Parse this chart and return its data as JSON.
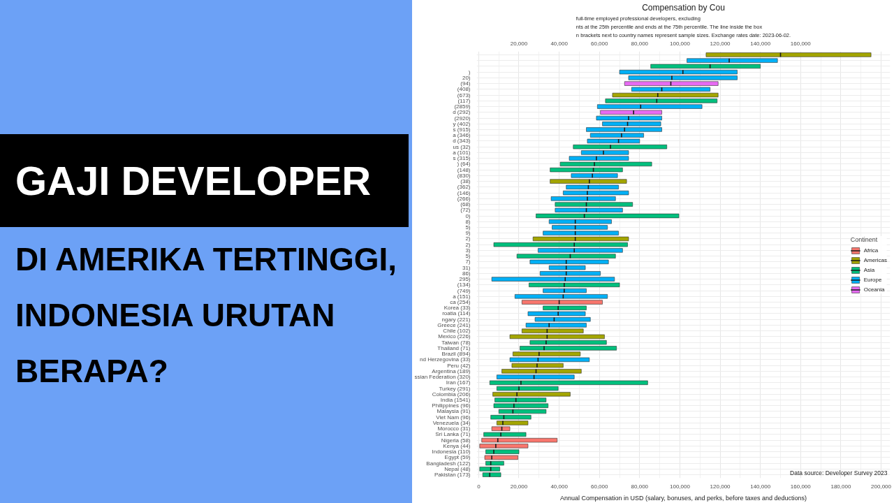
{
  "chart_data": {
    "type": "box",
    "orientation": "horizontal",
    "title": "Compensation by Cou",
    "subtitle": "full-time employed professional developers, excluding\nnts at the 25th percentile and ends at the 75th percentile. The line inside the box\nn brackets next to country names represent sample sizes. Exchange rates date: 2023-06-02.",
    "xlabel": "Annual Compensation in USD (salary, bonuses, and perks, before taxes and deductions)",
    "legend_title": "Continent",
    "legend": "right",
    "grid": true,
    "annotations": [
      "GAJI DEVELOPER",
      "DI AMERIKA TERTINGGI,",
      "INDONESIA URUTAN",
      "BERAPA?",
      "Data source: Developer Survey 2023"
    ],
    "xlim": [
      -1000,
      204500
    ],
    "xticks": [
      0,
      {
        "value": 20000,
        "label": "20,000"
      },
      {
        "value": 40000,
        "label": "40,000"
      },
      {
        "value": 60000,
        "label": "60,000"
      },
      {
        "value": 80000,
        "label": "80,000"
      },
      {
        "value": 100000,
        "label": "100,000"
      },
      {
        "value": 120000,
        "label": "120,000"
      },
      {
        "value": 140000,
        "label": "140,000"
      },
      {
        "value": 160000,
        "label": "160,000"
      },
      {
        "value": 180000,
        "label": "180,000"
      },
      {
        "value": 200000,
        "label": "200,000"
      }
    ],
    "x2lim": [
      -1000,
      204500
    ],
    "x2ticks": [
      {
        "value": 20000,
        "label": "20,000"
      },
      {
        "value": 40000,
        "label": "40,000"
      },
      {
        "value": 60000,
        "label": "60,000"
      },
      {
        "value": 80000,
        "label": "80,000"
      },
      {
        "value": 100000,
        "label": "100,000"
      },
      {
        "value": 120000,
        "label": "120,000"
      },
      {
        "value": 140000,
        "label": "140,000"
      },
      {
        "value": 160000,
        "label": "160,000"
      }
    ],
    "categories": [
      null,
      null,
      null,
      ")",
      "20)",
      "(94)",
      "(408)",
      "(673)",
      "(117)",
      "(2859)",
      "d (292)",
      "(2920)",
      "y (402)",
      "s (915)",
      "a (346)",
      "d (343)",
      "us (32)",
      "a (101)",
      "s (315)",
      ") (64)",
      "(148)",
      "(830)",
      "(38)",
      "(362)",
      "(146)",
      "(266)",
      "(68)",
      "(72)",
      "0)",
      "8)",
      "5)",
      "9)",
      "2)",
      "2)",
      "3)",
      "5)",
      "7)",
      "31)",
      "86)",
      "295)",
      "(134)",
      "(749)",
      "a (151)",
      "ca (254)",
      "Korea (33)",
      "roatia (114)",
      "ngary (221)",
      "Greece (241)",
      "Chile (102)",
      "Mexico (226)",
      "Taiwan (78)",
      "Thailand (71)",
      "Brazil (894)",
      "nd Herzegovina (33)",
      "Peru (42)",
      "Argentina (189)",
      "ssian Federation (320)",
      "Iran (167)",
      "Turkey (291)",
      "Colombia (206)",
      "India (1541)",
      "Philippines (96)",
      "Malaysia (91)",
      "Viet Nam (96)",
      "Venezuela (34)",
      "Morocco (31)",
      "Sri Lanka (71)",
      "Nigeria (58)",
      "Kenya (44)",
      "Indonesia (110)",
      "Egypt (59)",
      "Bangladesh (122)",
      "Nepal (48)",
      "Pakistan (173)"
    ],
    "series": [
      {
        "name": "Africa",
        "color": "#f8766d",
        "boxes": [
          null,
          null,
          null,
          null,
          null,
          null,
          null,
          null,
          null,
          null,
          null,
          null,
          null,
          null,
          null,
          null,
          null,
          null,
          null,
          null,
          null,
          null,
          null,
          null,
          null,
          null,
          null,
          null,
          null,
          null,
          null,
          null,
          null,
          null,
          null,
          null,
          null,
          null,
          null,
          null,
          null,
          null,
          null,
          {
            "low": 21500,
            "q1": 21500,
            "median": 40000,
            "q3": 61500,
            "high": 61500
          },
          null,
          null,
          null,
          null,
          null,
          null,
          null,
          null,
          null,
          null,
          null,
          null,
          null,
          null,
          null,
          null,
          null,
          null,
          null,
          null,
          null,
          {
            "low": 6500,
            "q1": 6500,
            "median": 11500,
            "q3": 15500,
            "high": 15500
          },
          null,
          {
            "low": 1500,
            "q1": 1500,
            "median": 9500,
            "q3": 39000,
            "high": 39000
          },
          {
            "low": 500,
            "q1": 500,
            "median": 8500,
            "q3": 24500,
            "high": 24500
          },
          null,
          {
            "low": 3000,
            "q1": 3000,
            "median": 6500,
            "q3": 19500,
            "high": 19500
          },
          null,
          null,
          null
        ]
      },
      {
        "name": "Americas",
        "color": "#a3a500",
        "boxes": [
          {
            "low": 113000,
            "q1": 113000,
            "median": 150000,
            "q3": 195000,
            "high": 195000
          },
          null,
          null,
          null,
          null,
          null,
          null,
          {
            "low": 66500,
            "q1": 66500,
            "median": 89000,
            "q3": 119000,
            "high": 119000
          },
          null,
          null,
          null,
          null,
          null,
          null,
          null,
          null,
          null,
          null,
          null,
          null,
          null,
          null,
          {
            "low": 35500,
            "q1": 35500,
            "median": 55000,
            "q3": 73500,
            "high": 73500
          },
          null,
          null,
          null,
          null,
          null,
          null,
          null,
          null,
          null,
          {
            "low": 27000,
            "q1": 27000,
            "median": 48000,
            "q3": 74500,
            "high": 74500
          },
          null,
          null,
          null,
          null,
          null,
          null,
          null,
          null,
          null,
          null,
          null,
          null,
          null,
          null,
          null,
          {
            "low": 21500,
            "q1": 21500,
            "median": 34000,
            "q3": 52000,
            "high": 52000
          },
          {
            "low": 15500,
            "q1": 15500,
            "median": 34000,
            "q3": 62500,
            "high": 62500
          },
          null,
          null,
          {
            "low": 17000,
            "q1": 17000,
            "median": 30000,
            "q3": 50500,
            "high": 50500
          },
          null,
          {
            "low": 16500,
            "q1": 16500,
            "median": 29000,
            "q3": 42000,
            "high": 42000
          },
          {
            "low": 11500,
            "q1": 11500,
            "median": 28500,
            "q3": 51000,
            "high": 51000
          },
          null,
          null,
          null,
          {
            "low": 7000,
            "q1": 7000,
            "median": 19000,
            "q3": 45500,
            "high": 45500
          },
          null,
          null,
          null,
          null,
          {
            "low": 9000,
            "q1": 9000,
            "median": 12000,
            "q3": 24500,
            "high": 24500
          },
          null,
          null,
          null,
          null,
          null,
          null,
          null,
          null,
          null
        ]
      },
      {
        "name": "Asia",
        "color": "#00bf7d",
        "boxes": [
          null,
          null,
          {
            "low": 85500,
            "q1": 85500,
            "median": 115000,
            "q3": 140000,
            "high": 140000
          },
          null,
          null,
          null,
          null,
          null,
          {
            "low": 63000,
            "q1": 63000,
            "median": 88500,
            "q3": 118500,
            "high": 118500
          },
          null,
          null,
          null,
          null,
          null,
          null,
          null,
          {
            "low": 47000,
            "q1": 47000,
            "median": 65500,
            "q3": 93500,
            "high": 93500
          },
          null,
          null,
          {
            "low": 40500,
            "q1": 40500,
            "median": 57500,
            "q3": 86000,
            "high": 86000
          },
          {
            "low": 35500,
            "q1": 35500,
            "median": 57000,
            "q3": 71500,
            "high": 71500
          },
          null,
          null,
          null,
          null,
          null,
          {
            "low": 38000,
            "q1": 38000,
            "median": 53500,
            "q3": 76500,
            "high": 76500
          },
          null,
          {
            "low": 28500,
            "q1": 28500,
            "median": 52500,
            "q3": 99500,
            "high": 99500
          },
          null,
          null,
          null,
          null,
          {
            "low": 7500,
            "q1": 7500,
            "median": 47500,
            "q3": 74000,
            "high": 74000
          },
          null,
          {
            "low": 19000,
            "q1": 19000,
            "median": 45500,
            "q3": 68000,
            "high": 68000
          },
          null,
          null,
          null,
          null,
          {
            "low": 25000,
            "q1": 25000,
            "median": 42500,
            "q3": 70000,
            "high": 70000
          },
          null,
          null,
          null,
          {
            "low": 32000,
            "q1": 32000,
            "median": 39500,
            "q3": 53500,
            "high": 53500
          },
          null,
          null,
          null,
          null,
          null,
          {
            "low": 25500,
            "q1": 25500,
            "median": 33500,
            "q3": 63500,
            "high": 63500
          },
          {
            "low": 20500,
            "q1": 20500,
            "median": 32500,
            "q3": 68500,
            "high": 68500
          },
          null,
          null,
          null,
          null,
          null,
          {
            "low": 5500,
            "q1": 5500,
            "median": 21000,
            "q3": 84000,
            "high": 84000
          },
          {
            "low": 9000,
            "q1": 9000,
            "median": 20000,
            "q3": 39500,
            "high": 39500
          },
          null,
          {
            "low": 8000,
            "q1": 8000,
            "median": 18500,
            "q3": 33500,
            "high": 33500
          },
          {
            "low": 7500,
            "q1": 7500,
            "median": 17500,
            "q3": 34500,
            "high": 34500
          },
          {
            "low": 10000,
            "q1": 10000,
            "median": 17000,
            "q3": 33500,
            "high": 33500
          },
          {
            "low": 6000,
            "q1": 6000,
            "median": 12500,
            "q3": 26000,
            "high": 26000
          },
          null,
          null,
          {
            "low": 2500,
            "q1": 2500,
            "median": 11000,
            "q3": 23500,
            "high": 23500
          },
          null,
          null,
          {
            "low": 3500,
            "q1": 3500,
            "median": 7500,
            "q3": 20000,
            "high": 20000
          },
          null,
          {
            "low": 3500,
            "q1": 3500,
            "median": 6000,
            "q3": 12500,
            "high": 12500
          },
          {
            "low": 500,
            "q1": 500,
            "median": 6000,
            "q3": 10500,
            "high": 10500
          },
          {
            "low": 2000,
            "q1": 2000,
            "median": 5500,
            "q3": 11000,
            "high": 11000
          }
        ]
      },
      {
        "name": "Europe",
        "color": "#00b0f6",
        "boxes": [
          null,
          {
            "low": 103500,
            "q1": 103500,
            "median": 124500,
            "q3": 148500,
            "high": 148500
          },
          null,
          {
            "low": 70000,
            "q1": 70000,
            "median": 101500,
            "q3": 128500,
            "high": 128500
          },
          {
            "low": 74500,
            "q1": 74500,
            "median": 96000,
            "q3": 128500,
            "high": 128500
          },
          null,
          {
            "low": 76000,
            "q1": 76000,
            "median": 91000,
            "q3": 115000,
            "high": 115000
          },
          null,
          null,
          {
            "low": 59000,
            "q1": 59000,
            "median": 80500,
            "q3": 111000,
            "high": 111000
          },
          null,
          {
            "low": 58500,
            "q1": 58500,
            "median": 74500,
            "q3": 91000,
            "high": 91000
          },
          {
            "low": 61500,
            "q1": 61500,
            "median": 74000,
            "q3": 90500,
            "high": 90500
          },
          {
            "low": 53500,
            "q1": 53500,
            "median": 72500,
            "q3": 91000,
            "high": 91000
          },
          {
            "low": 55500,
            "q1": 55500,
            "median": 71000,
            "q3": 82000,
            "high": 82000
          },
          {
            "low": 54000,
            "q1": 54000,
            "median": 69500,
            "q3": 80000,
            "high": 80000
          },
          null,
          {
            "low": 51000,
            "q1": 51000,
            "median": 62000,
            "q3": 74500,
            "high": 74500
          },
          {
            "low": 45000,
            "q1": 45000,
            "median": 58500,
            "q3": 74500,
            "high": 74500
          },
          null,
          null,
          {
            "low": 46000,
            "q1": 46000,
            "median": 56500,
            "q3": 69000,
            "high": 69000
          },
          null,
          {
            "low": 43500,
            "q1": 43500,
            "median": 54500,
            "q3": 69500,
            "high": 69500
          },
          {
            "low": 42000,
            "q1": 42000,
            "median": 54000,
            "q3": 74500,
            "high": 74500
          },
          {
            "low": 36000,
            "q1": 36000,
            "median": 54000,
            "q3": 68000,
            "high": 68000
          },
          null,
          {
            "low": 38000,
            "q1": 38000,
            "median": 53500,
            "q3": 71500,
            "high": 71500
          },
          null,
          {
            "low": 35000,
            "q1": 35000,
            "median": 48000,
            "q3": 66000,
            "high": 66000
          },
          {
            "low": 36500,
            "q1": 36500,
            "median": 48000,
            "q3": 64000,
            "high": 64000
          },
          {
            "low": 32000,
            "q1": 32000,
            "median": 48000,
            "q3": 69500,
            "high": 69500
          },
          null,
          null,
          {
            "low": 29500,
            "q1": 29500,
            "median": 47500,
            "q3": 71500,
            "high": 71500
          },
          null,
          {
            "low": 25500,
            "q1": 25500,
            "median": 43500,
            "q3": 64500,
            "high": 64500
          },
          {
            "low": 35000,
            "q1": 35000,
            "median": 43500,
            "q3": 53000,
            "high": 53000
          },
          {
            "low": 30500,
            "q1": 30500,
            "median": 43500,
            "q3": 60500,
            "high": 60500
          },
          {
            "low": 6500,
            "q1": 6500,
            "median": 43000,
            "q3": 67500,
            "high": 67500
          },
          null,
          {
            "low": 32000,
            "q1": 32000,
            "median": 42500,
            "q3": 53500,
            "high": 53500
          },
          {
            "low": 18000,
            "q1": 18000,
            "median": 42000,
            "q3": 64000,
            "high": 64000
          },
          null,
          null,
          {
            "low": 24500,
            "q1": 24500,
            "median": 39500,
            "q3": 53000,
            "high": 53000
          },
          {
            "low": 28000,
            "q1": 28000,
            "median": 37500,
            "q3": 55500,
            "high": 55500
          },
          {
            "low": 23500,
            "q1": 23500,
            "median": 35000,
            "q3": 53500,
            "high": 53500
          },
          null,
          null,
          null,
          null,
          null,
          {
            "low": 15500,
            "q1": 15500,
            "median": 29500,
            "q3": 55000,
            "high": 55000
          },
          null,
          null,
          {
            "low": 9000,
            "q1": 9000,
            "median": 27500,
            "q3": 47500,
            "high": 47500
          },
          null,
          null,
          null,
          null,
          null,
          null,
          null,
          null,
          null,
          null,
          null,
          null,
          null,
          null,
          null,
          null,
          null
        ]
      },
      {
        "name": "Oceania",
        "color": "#e76bf3",
        "boxes": [
          null,
          null,
          null,
          null,
          null,
          {
            "low": 72500,
            "q1": 72500,
            "median": 95500,
            "q3": 119000,
            "high": 119000
          },
          null,
          null,
          null,
          null,
          {
            "low": 60500,
            "q1": 60500,
            "median": 77000,
            "q3": 91000,
            "high": 91000
          },
          null,
          null,
          null,
          null,
          null,
          null,
          null,
          null,
          null,
          null,
          null,
          null,
          null,
          null,
          null,
          null,
          null,
          null,
          null,
          null,
          null,
          null,
          null,
          null,
          null,
          null,
          null,
          null,
          null,
          null,
          null,
          null,
          null,
          null,
          null,
          null,
          null,
          null,
          null,
          null,
          null,
          null,
          null,
          null,
          null,
          null,
          null,
          null,
          null,
          null,
          null,
          null,
          null,
          null,
          null,
          null,
          null,
          null,
          null,
          null,
          null,
          null,
          null
        ]
      }
    ]
  }
}
